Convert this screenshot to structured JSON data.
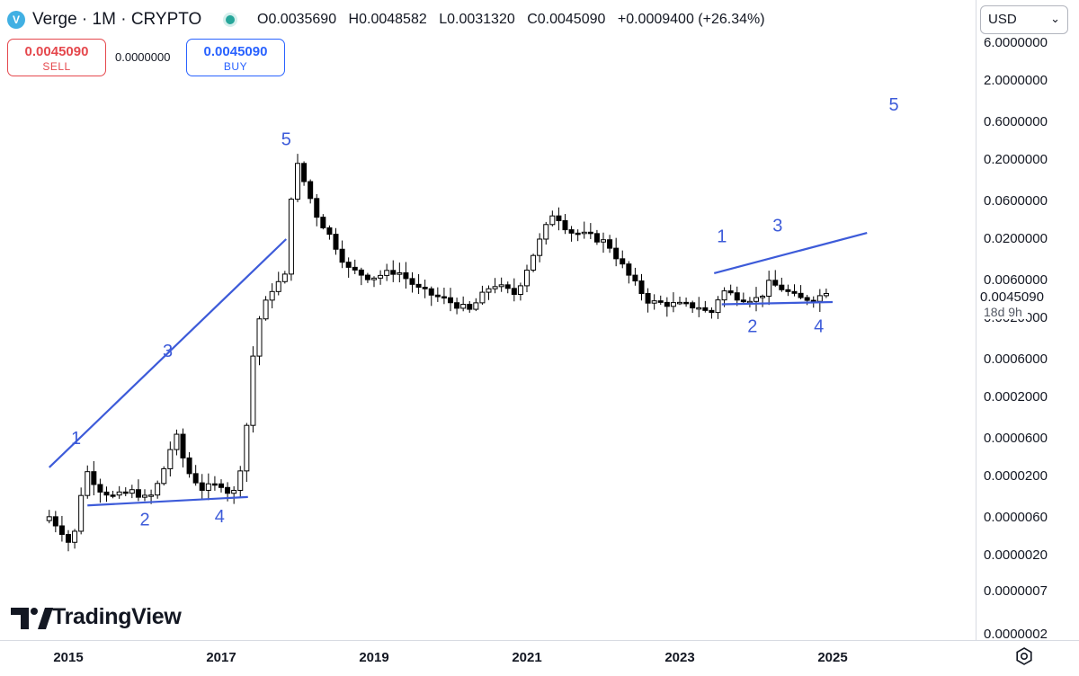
{
  "header": {
    "symbol_title": "Verge · 1M · CRYPTO",
    "logo_letter": "V",
    "ohlc": [
      {
        "label": "O",
        "value": "0.0035690"
      },
      {
        "label": "H",
        "value": "0.0048582"
      },
      {
        "label": "L",
        "value": "0.0031320"
      },
      {
        "label": "C",
        "value": "0.0045090"
      }
    ],
    "change": "+0.0009400 (+26.34%)"
  },
  "trade": {
    "sell_price": "0.0045090",
    "sell_label": "SELL",
    "spread": "0.0000000",
    "buy_price": "0.0045090",
    "buy_label": "BUY"
  },
  "currency": {
    "value": "USD"
  },
  "countdown": "18d 9h",
  "brand": "TradingView",
  "colors": {
    "accent": "#3d5bd9",
    "sell": "#e5484d",
    "buy": "#2962ff",
    "candle_up": "#ffffff",
    "candle_down": "#000000",
    "status": "#26a69a"
  },
  "icons": {
    "settings": "gear-icon",
    "dropdown": "chevron-down-icon",
    "symbol": "verge-logo-icon"
  },
  "chart_data": {
    "type": "candlestick",
    "scale": "log",
    "ylim": [
      2e-07,
      6
    ],
    "price_ticks": [
      "6.0000000",
      "2.0000000",
      "0.6000000",
      "0.2000000",
      "0.0600000",
      "0.0200000",
      "0.0060000",
      "0.0020000",
      "0.0006000",
      "0.0002000",
      "0.0000600",
      "0.0000200",
      "0.0000060",
      "0.0000020",
      "0.0000007",
      "0.0000002"
    ],
    "x_ticks": [
      "2015",
      "2017",
      "2019",
      "2021",
      "2023",
      "2025"
    ],
    "last_price": "0.0045090",
    "anchors": [
      {
        "date": "2014.75",
        "price": 6.2e-06
      },
      {
        "date": "2014.92",
        "price": 4e-06
      },
      {
        "date": "2015.05",
        "price": 2.5e-06
      },
      {
        "date": "2015.22",
        "price": 2.5e-05
      },
      {
        "date": "2015.40",
        "price": 1.4e-05
      },
      {
        "date": "2015.60",
        "price": 1.1e-05
      },
      {
        "date": "2015.85",
        "price": 1.3e-05
      },
      {
        "date": "2016.05",
        "price": 1e-05
      },
      {
        "date": "2016.20",
        "price": 1.8e-05
      },
      {
        "date": "2016.40",
        "price": 7e-05
      },
      {
        "date": "2016.55",
        "price": 2.4e-05
      },
      {
        "date": "2016.75",
        "price": 1.4e-05
      },
      {
        "date": "2017.00",
        "price": 1.6e-05
      },
      {
        "date": "2017.15",
        "price": 1.1e-05
      },
      {
        "date": "2017.30",
        "price": 4e-05
      },
      {
        "date": "2017.45",
        "price": 0.0015
      },
      {
        "date": "2017.65",
        "price": 0.0045
      },
      {
        "date": "2017.85",
        "price": 0.007
      },
      {
        "date": "2017.95",
        "price": 0.22
      },
      {
        "date": "2018.05",
        "price": 0.13
      },
      {
        "date": "2018.25",
        "price": 0.04
      },
      {
        "date": "2018.45",
        "price": 0.02
      },
      {
        "date": "2018.65",
        "price": 0.0085
      },
      {
        "date": "2018.95",
        "price": 0.0065
      },
      {
        "date": "2019.30",
        "price": 0.008
      },
      {
        "date": "2019.60",
        "price": 0.0045
      },
      {
        "date": "2019.90",
        "price": 0.0035
      },
      {
        "date": "2020.25",
        "price": 0.0025
      },
      {
        "date": "2020.55",
        "price": 0.0055
      },
      {
        "date": "2020.85",
        "price": 0.004
      },
      {
        "date": "2021.05",
        "price": 0.011
      },
      {
        "date": "2021.35",
        "price": 0.045
      },
      {
        "date": "2021.55",
        "price": 0.025
      },
      {
        "date": "2021.80",
        "price": 0.022
      },
      {
        "date": "2022.05",
        "price": 0.018
      },
      {
        "date": "2022.35",
        "price": 0.0065
      },
      {
        "date": "2022.60",
        "price": 0.0032
      },
      {
        "date": "2022.90",
        "price": 0.003
      },
      {
        "date": "2023.25",
        "price": 0.0028
      },
      {
        "date": "2023.40",
        "price": 0.0022
      },
      {
        "date": "2023.55",
        "price": 0.0045
      },
      {
        "date": "2023.80",
        "price": 0.0036
      },
      {
        "date": "2024.05",
        "price": 0.0035
      },
      {
        "date": "2024.15",
        "price": 0.0055
      },
      {
        "date": "2024.30",
        "price": 0.005
      },
      {
        "date": "2024.55",
        "price": 0.0035
      },
      {
        "date": "2024.80",
        "price": 0.0036
      },
      {
        "date": "2024.92",
        "price": 0.0045
      }
    ],
    "annotations": {
      "labels": [
        {
          "text": "1",
          "date": 2015.1,
          "price": 6.2e-05
        },
        {
          "text": "2",
          "date": 2016.0,
          "price": 5.8e-06
        },
        {
          "text": "3",
          "date": 2016.3,
          "price": 0.00078
        },
        {
          "text": "4",
          "date": 2016.98,
          "price": 6.3e-06
        },
        {
          "text": "5",
          "date": 2017.85,
          "price": 0.37
        },
        {
          "text": "1",
          "date": 2023.55,
          "price": 0.022
        },
        {
          "text": "2",
          "date": 2023.95,
          "price": 0.0016
        },
        {
          "text": "3",
          "date": 2024.28,
          "price": 0.03
        },
        {
          "text": "4",
          "date": 2024.82,
          "price": 0.0016
        },
        {
          "text": "5",
          "date": 2025.8,
          "price": 1.01
        }
      ],
      "lines": [
        {
          "from": {
            "date": 2014.75,
            "price": 2.6e-05
          },
          "to": {
            "date": 2017.85,
            "price": 0.02
          }
        },
        {
          "from": {
            "date": 2015.25,
            "price": 8.6e-06
          },
          "to": {
            "date": 2017.35,
            "price": 1.1e-05
          }
        },
        {
          "from": {
            "date": 2023.45,
            "price": 0.0074
          },
          "to": {
            "date": 2025.45,
            "price": 0.024
          }
        },
        {
          "from": {
            "date": 2023.55,
            "price": 0.003
          },
          "to": {
            "date": 2025.0,
            "price": 0.0032
          }
        }
      ]
    }
  }
}
